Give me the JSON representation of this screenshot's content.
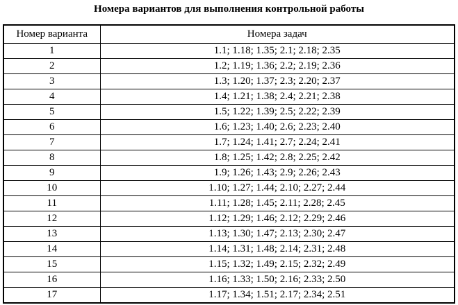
{
  "page_title": "Номера вариантов для выполнения контрольной работы",
  "table": {
    "headers": {
      "variant": "Номер варианта",
      "tasks": "Номера задач"
    },
    "rows": [
      {
        "variant": "1",
        "tasks": "1.1; 1.18; 1.35; 2.1; 2.18; 2.35"
      },
      {
        "variant": "2",
        "tasks": "1.2; 1.19; 1.36; 2.2; 2.19; 2.36"
      },
      {
        "variant": "3",
        "tasks": "1.3; 1.20; 1.37; 2.3; 2.20; 2.37"
      },
      {
        "variant": "4",
        "tasks": "1.4; 1.21; 1.38; 2.4; 2.21; 2.38"
      },
      {
        "variant": "5",
        "tasks": "1.5; 1.22; 1.39; 2.5; 2.22; 2.39"
      },
      {
        "variant": "6",
        "tasks": "1.6; 1.23; 1.40; 2.6; 2.23; 2.40"
      },
      {
        "variant": "7",
        "tasks": "1.7; 1.24; 1.41; 2.7; 2.24; 2.41"
      },
      {
        "variant": "8",
        "tasks": "1.8; 1.25; 1.42; 2.8; 2.25; 2.42"
      },
      {
        "variant": "9",
        "tasks": "1.9; 1.26; 1.43; 2.9; 2.26; 2.43"
      },
      {
        "variant": "10",
        "tasks": "1.10; 1.27; 1.44; 2.10; 2.27; 2.44"
      },
      {
        "variant": "11",
        "tasks": "1.11; 1.28; 1.45; 2.11; 2.28; 2.45"
      },
      {
        "variant": "12",
        "tasks": "1.12; 1.29; 1.46; 2.12; 2.29; 2.46"
      },
      {
        "variant": "13",
        "tasks": "1.13; 1.30; 1.47; 2.13; 2.30; 2.47"
      },
      {
        "variant": "14",
        "tasks": "1.14; 1.31; 1.48; 2.14; 2.31; 2.48"
      },
      {
        "variant": "15",
        "tasks": "1.15; 1.32; 1.49; 2.15; 2.32; 2.49"
      },
      {
        "variant": "16",
        "tasks": "1.16; 1.33; 1.50; 2.16; 2.33; 2.50"
      },
      {
        "variant": "17",
        "tasks": "1.17; 1.34; 1.51; 2.17; 2.34; 2.51"
      }
    ]
  }
}
